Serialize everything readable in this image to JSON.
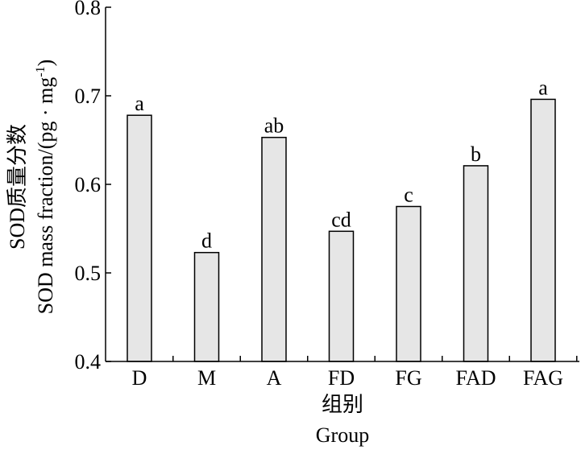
{
  "chart_data": {
    "type": "bar",
    "categories": [
      "D",
      "M",
      "A",
      "FD",
      "FG",
      "FAD",
      "FAG"
    ],
    "values": [
      0.678,
      0.523,
      0.653,
      0.547,
      0.575,
      0.621,
      0.696
    ],
    "significance_letters": [
      "a",
      "d",
      "ab",
      "cd",
      "c",
      "b",
      "a"
    ],
    "ylim": [
      0.4,
      0.8
    ],
    "yticks": [
      "0.4",
      "0.5",
      "0.6",
      "0.7",
      "0.8"
    ],
    "ylabel_cn": "SOD质量分数",
    "ylabel_en_main": "SOD mass fraction/(pg · mg",
    "ylabel_en_sup": "-1",
    "ylabel_en_close": ")",
    "xlabel_cn": "组别",
    "xlabel_en": "Group",
    "bar_fill": "#e6e6e6",
    "grid": false
  }
}
